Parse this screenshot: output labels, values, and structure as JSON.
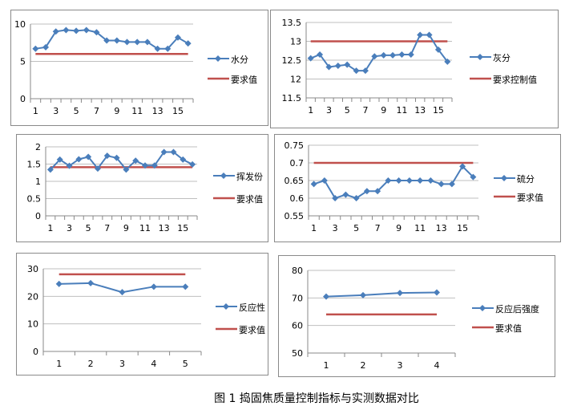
{
  "caption": "图 1   捣固焦质量控制指标与实测数据对比",
  "colors": {
    "measured": "#4a7ebb",
    "required": "#c0504d",
    "grid": "#bfbfbf"
  },
  "chart_data": [
    {
      "type": "line",
      "categories": [
        "1",
        "2",
        "3",
        "4",
        "5",
        "6",
        "7",
        "8",
        "9",
        "10",
        "11",
        "12",
        "13",
        "14",
        "15",
        "16"
      ],
      "x_tick_labels": [
        "1",
        "3",
        "5",
        "7",
        "9",
        "11",
        "13",
        "15"
      ],
      "ylim": [
        0,
        10
      ],
      "y_ticks": [
        "0",
        "5",
        "10"
      ],
      "grid": true,
      "legend": "right",
      "series": [
        {
          "name": "水分",
          "values": [
            6.7,
            6.9,
            9.0,
            9.2,
            9.1,
            9.2,
            8.9,
            7.8,
            7.8,
            7.6,
            7.6,
            7.6,
            6.7,
            6.7,
            8.2,
            7.4
          ],
          "marker": "diamond"
        },
        {
          "name": "要求值",
          "values": [
            6,
            6,
            6,
            6,
            6,
            6,
            6,
            6,
            6,
            6,
            6,
            6,
            6,
            6,
            6,
            6
          ]
        }
      ]
    },
    {
      "type": "line",
      "categories": [
        "1",
        "2",
        "3",
        "4",
        "5",
        "6",
        "7",
        "8",
        "9",
        "10",
        "11",
        "12",
        "13",
        "14",
        "15",
        "16"
      ],
      "x_tick_labels": [
        "1",
        "3",
        "5",
        "7",
        "9",
        "11",
        "13",
        "15"
      ],
      "ylim": [
        11.5,
        13.5
      ],
      "y_ticks": [
        "11.5",
        "12",
        "12.5",
        "13",
        "13.5"
      ],
      "grid": true,
      "legend": "right",
      "series": [
        {
          "name": "灰分",
          "values": [
            12.55,
            12.65,
            12.32,
            12.35,
            12.38,
            12.22,
            12.22,
            12.6,
            12.63,
            12.63,
            12.65,
            12.65,
            13.17,
            13.17,
            12.78,
            12.46
          ],
          "marker": "diamond"
        },
        {
          "name": "要求控制值",
          "values": [
            13,
            13,
            13,
            13,
            13,
            13,
            13,
            13,
            13,
            13,
            13,
            13,
            13,
            13,
            13,
            13
          ]
        }
      ]
    },
    {
      "type": "line",
      "categories": [
        "1",
        "2",
        "3",
        "4",
        "5",
        "6",
        "7",
        "8",
        "9",
        "10",
        "11",
        "12",
        "13",
        "14",
        "15",
        "16"
      ],
      "x_tick_labels": [
        "1",
        "3",
        "5",
        "7",
        "9",
        "11",
        "13",
        "15"
      ],
      "ylim": [
        0,
        2
      ],
      "y_ticks": [
        "0",
        "0.5",
        "1",
        "1.5",
        "2"
      ],
      "grid": true,
      "legend": "right",
      "series": [
        {
          "name": "挥发份",
          "values": [
            1.34,
            1.63,
            1.45,
            1.64,
            1.71,
            1.37,
            1.74,
            1.68,
            1.34,
            1.6,
            1.46,
            1.46,
            1.85,
            1.85,
            1.63,
            1.49
          ],
          "marker": "diamond"
        },
        {
          "name": "要求值",
          "values": [
            1.41,
            1.41,
            1.41,
            1.41,
            1.41,
            1.41,
            1.41,
            1.41,
            1.41,
            1.41,
            1.41,
            1.41,
            1.41,
            1.41,
            1.41,
            1.41
          ]
        }
      ]
    },
    {
      "type": "line",
      "categories": [
        "1",
        "2",
        "3",
        "4",
        "5",
        "6",
        "7",
        "8",
        "9",
        "10",
        "11",
        "12",
        "13",
        "14",
        "15",
        "16"
      ],
      "x_tick_labels": [
        "1",
        "3",
        "5",
        "7",
        "9",
        "11",
        "13",
        "15"
      ],
      "ylim": [
        0.55,
        0.75
      ],
      "y_ticks": [
        "0.55",
        "0.6",
        "0.65",
        "0.7",
        "0.75"
      ],
      "grid": true,
      "legend": "right",
      "series": [
        {
          "name": "硫分",
          "values": [
            0.64,
            0.65,
            0.6,
            0.61,
            0.6,
            0.62,
            0.62,
            0.65,
            0.65,
            0.65,
            0.65,
            0.65,
            0.64,
            0.64,
            0.69,
            0.66
          ],
          "marker": "diamond"
        },
        {
          "name": "要求值",
          "values": [
            0.7,
            0.7,
            0.7,
            0.7,
            0.7,
            0.7,
            0.7,
            0.7,
            0.7,
            0.7,
            0.7,
            0.7,
            0.7,
            0.7,
            0.7,
            0.7
          ]
        }
      ]
    },
    {
      "type": "line",
      "categories": [
        "1",
        "2",
        "3",
        "4",
        "5"
      ],
      "x_tick_labels": [
        "1",
        "2",
        "3",
        "4",
        "5"
      ],
      "ylim": [
        0,
        30
      ],
      "y_ticks": [
        "0",
        "10",
        "20",
        "30"
      ],
      "grid": true,
      "legend": "right",
      "series": [
        {
          "name": "反应性",
          "values": [
            24.5,
            24.8,
            21.5,
            23.5,
            23.5
          ],
          "marker": "diamond"
        },
        {
          "name": "要求值",
          "values": [
            28,
            28,
            28,
            28,
            28
          ]
        }
      ]
    },
    {
      "type": "line",
      "categories": [
        "1",
        "2",
        "3",
        "4"
      ],
      "x_tick_labels": [
        "1",
        "2",
        "3",
        "4"
      ],
      "ylim": [
        50,
        80
      ],
      "y_ticks": [
        "50",
        "60",
        "70",
        "80"
      ],
      "grid": true,
      "legend": "right",
      "series": [
        {
          "name": "反应后强度",
          "values": [
            70.5,
            71.0,
            71.8,
            72.0
          ],
          "marker": "diamond"
        },
        {
          "name": "要求值",
          "values": [
            64,
            64,
            64,
            64
          ]
        }
      ]
    }
  ]
}
